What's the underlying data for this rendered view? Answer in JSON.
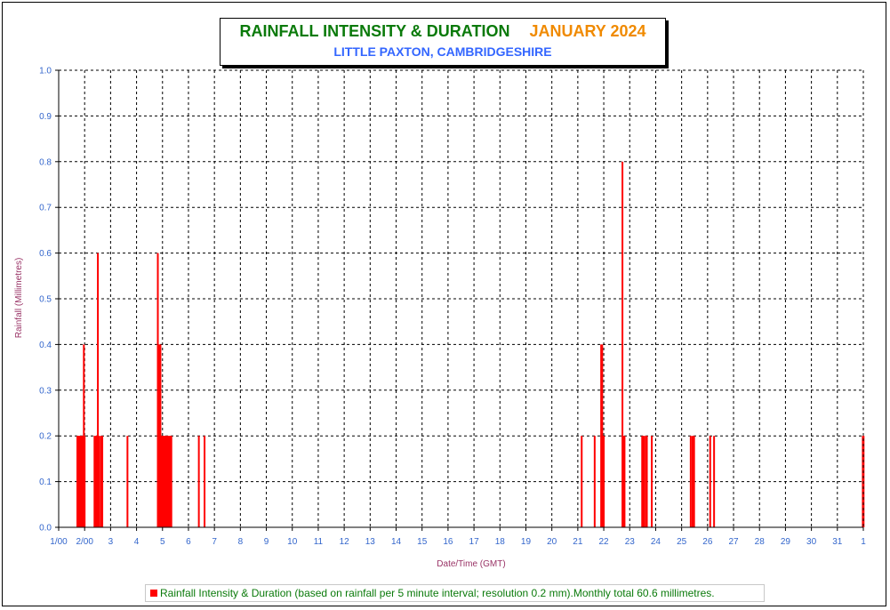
{
  "title": {
    "main": "RAINFALL INTENSITY & DURATION",
    "month": "JANUARY 2024",
    "subtitle": "LITTLE PAXTON, CAMBRIDGESHIRE"
  },
  "legend": {
    "text": "Rainfall Intensity & Duration (based on rainfall per 5 minute interval; resolution 0.2 mm).Monthly total 60.6 millimetres."
  },
  "colors": {
    "bar": "#ff0000",
    "tick_text": "#3366cc",
    "axis_title": "#993366",
    "title_main": "#0a7a0a",
    "title_month": "#f08a00",
    "subtitle": "#3366ff"
  },
  "chart_data": {
    "type": "bar",
    "title": "RAINFALL INTENSITY & DURATION",
    "xlabel": "Date/Time (GMT)",
    "ylabel": "Rainfall (Millimetres)",
    "ylim": [
      0,
      1.0
    ],
    "xlim_days": [
      1,
      32
    ],
    "grid": true,
    "legend_position": "bottom",
    "x_ticks": [
      "1/00",
      "2/00",
      "3",
      "4",
      "5",
      "6",
      "7",
      "8",
      "9",
      "10",
      "11",
      "12",
      "13",
      "14",
      "15",
      "16",
      "17",
      "18",
      "19",
      "20",
      "21",
      "22",
      "23",
      "24",
      "25",
      "26",
      "27",
      "28",
      "29",
      "30",
      "31",
      "1"
    ],
    "y_ticks": [
      "0.0",
      "0.1",
      "0.2",
      "0.3",
      "0.4",
      "0.5",
      "0.6",
      "0.7",
      "0.8",
      "0.9",
      "1.0"
    ],
    "series": [
      {
        "name": "Rainfall Intensity & Duration",
        "points": [
          {
            "t": 1.72,
            "v": 0.2
          },
          {
            "t": 1.75,
            "v": 0.2
          },
          {
            "t": 1.78,
            "v": 0.2
          },
          {
            "t": 1.81,
            "v": 0.2
          },
          {
            "t": 1.84,
            "v": 0.2
          },
          {
            "t": 1.87,
            "v": 0.2
          },
          {
            "t": 1.9,
            "v": 0.2
          },
          {
            "t": 1.93,
            "v": 0.2
          },
          {
            "t": 1.97,
            "v": 0.4
          },
          {
            "t": 2.0,
            "v": 0.2
          },
          {
            "t": 2.38,
            "v": 0.2
          },
          {
            "t": 2.41,
            "v": 0.2
          },
          {
            "t": 2.44,
            "v": 0.2
          },
          {
            "t": 2.47,
            "v": 0.2
          },
          {
            "t": 2.51,
            "v": 0.6
          },
          {
            "t": 2.55,
            "v": 0.2
          },
          {
            "t": 2.62,
            "v": 0.2
          },
          {
            "t": 2.68,
            "v": 0.2
          },
          {
            "t": 3.65,
            "v": 0.2
          },
          {
            "t": 4.82,
            "v": 0.6
          },
          {
            "t": 4.86,
            "v": 0.4
          },
          {
            "t": 4.89,
            "v": 0.4
          },
          {
            "t": 4.92,
            "v": 0.4
          },
          {
            "t": 4.95,
            "v": 0.2
          },
          {
            "t": 4.98,
            "v": 0.2
          },
          {
            "t": 5.01,
            "v": 0.2
          },
          {
            "t": 5.04,
            "v": 0.2
          },
          {
            "t": 5.07,
            "v": 0.2
          },
          {
            "t": 5.1,
            "v": 0.2
          },
          {
            "t": 5.14,
            "v": 0.2
          },
          {
            "t": 5.18,
            "v": 0.2
          },
          {
            "t": 5.22,
            "v": 0.2
          },
          {
            "t": 5.26,
            "v": 0.2
          },
          {
            "t": 5.3,
            "v": 0.2
          },
          {
            "t": 5.34,
            "v": 0.2
          },
          {
            "t": 6.4,
            "v": 0.2
          },
          {
            "t": 6.62,
            "v": 0.2
          },
          {
            "t": 21.15,
            "v": 0.2
          },
          {
            "t": 21.65,
            "v": 0.2
          },
          {
            "t": 21.9,
            "v": 0.4
          },
          {
            "t": 21.94,
            "v": 0.4
          },
          {
            "t": 21.97,
            "v": 0.2
          },
          {
            "t": 22.0,
            "v": 0.2
          },
          {
            "t": 22.72,
            "v": 0.8
          },
          {
            "t": 22.76,
            "v": 0.2
          },
          {
            "t": 22.8,
            "v": 0.2
          },
          {
            "t": 23.48,
            "v": 0.2
          },
          {
            "t": 23.52,
            "v": 0.2
          },
          {
            "t": 23.56,
            "v": 0.2
          },
          {
            "t": 23.63,
            "v": 0.2
          },
          {
            "t": 23.66,
            "v": 0.2
          },
          {
            "t": 23.85,
            "v": 0.2
          },
          {
            "t": 25.35,
            "v": 0.2
          },
          {
            "t": 25.42,
            "v": 0.2
          },
          {
            "t": 25.48,
            "v": 0.2
          },
          {
            "t": 26.1,
            "v": 0.2
          },
          {
            "t": 26.25,
            "v": 0.2
          },
          {
            "t": 31.98,
            "v": 0.2
          },
          {
            "t": 32.01,
            "v": 0.2
          }
        ]
      }
    ]
  }
}
